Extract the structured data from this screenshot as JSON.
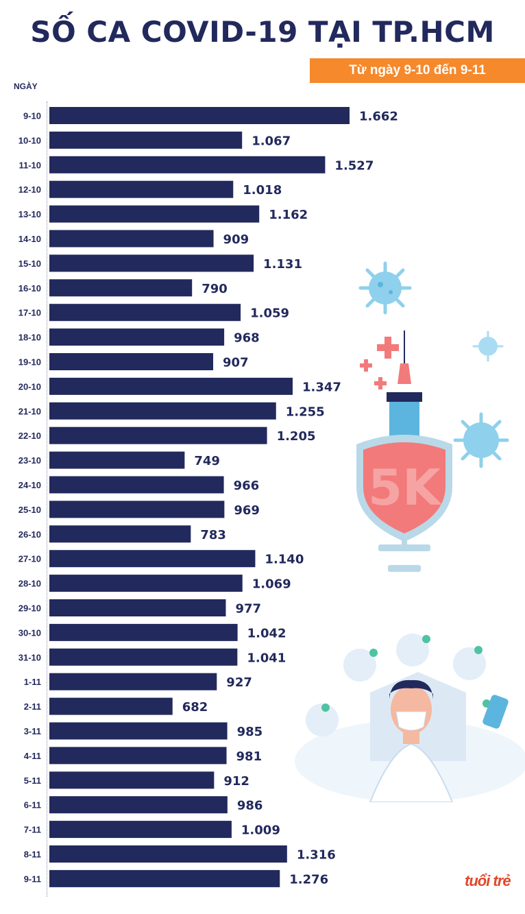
{
  "header": {
    "title": "SỐ CA COVID-19 TẠI TP.HCM",
    "subtitle": "Từ ngày 9-10 đến 9-11",
    "logo_text": "tuổi trẻ"
  },
  "colors": {
    "bar": "#22295c",
    "accent": "#f5892b",
    "text": "#22295c"
  },
  "chart_data": {
    "type": "bar",
    "orientation": "horizontal",
    "title": "SỐ CA COVID-19 TẠI TP.HCM",
    "subtitle": "Từ ngày 9-10 đến 9-11",
    "ylabel": "NGÀY",
    "xlabel": "",
    "xlim": [
      0,
      1662
    ],
    "grid": false,
    "categories": [
      "9-10",
      "10-10",
      "11-10",
      "12-10",
      "13-10",
      "14-10",
      "15-10",
      "16-10",
      "17-10",
      "18-10",
      "19-10",
      "20-10",
      "21-10",
      "22-10",
      "23-10",
      "24-10",
      "25-10",
      "26-10",
      "27-10",
      "28-10",
      "29-10",
      "30-10",
      "31-10",
      "1-11",
      "2-11",
      "3-11",
      "4-11",
      "5-11",
      "6-11",
      "7-11",
      "8-11",
      "9-11"
    ],
    "values": [
      1662,
      1067,
      1527,
      1018,
      1162,
      909,
      1131,
      790,
      1059,
      968,
      907,
      1347,
      1255,
      1205,
      749,
      966,
      969,
      783,
      1140,
      1069,
      977,
      1042,
      1041,
      927,
      682,
      985,
      981,
      912,
      986,
      1009,
      1316,
      1276
    ],
    "value_labels": [
      "1.662",
      "1.067",
      "1.527",
      "1.018",
      "1.162",
      "909",
      "1.131",
      "790",
      "1.059",
      "968",
      "907",
      "1.347",
      "1.255",
      "1.205",
      "749",
      "966",
      "969",
      "783",
      "1.140",
      "1.069",
      "977",
      "1.042",
      "1.041",
      "927",
      "682",
      "985",
      "981",
      "912",
      "986",
      "1.009",
      "1.316",
      "1.276"
    ]
  },
  "illustration": {
    "shield_text": "5K"
  }
}
